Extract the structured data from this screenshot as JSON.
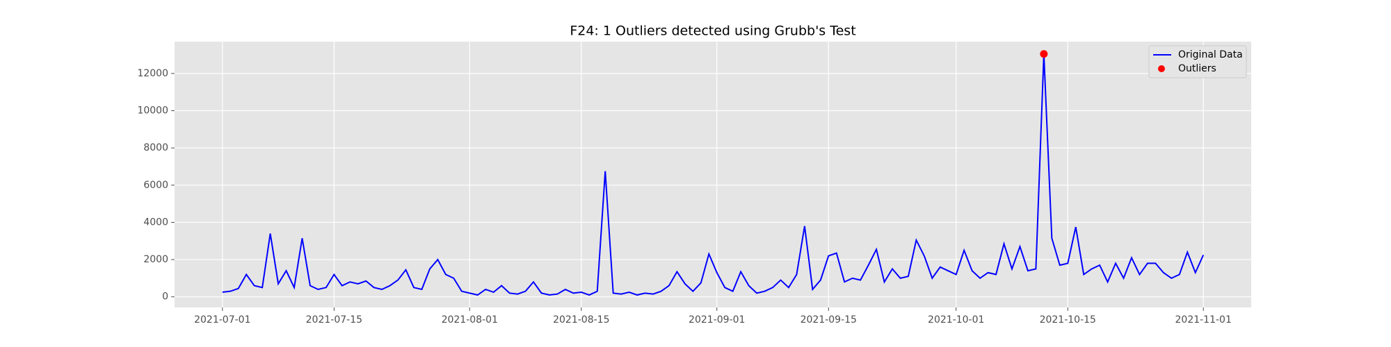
{
  "chart_data": {
    "type": "line",
    "title": "F24: 1 Outliers detected using Grubb's Test",
    "x": [
      "2021-07-01",
      "2021-07-02",
      "2021-07-03",
      "2021-07-04",
      "2021-07-05",
      "2021-07-06",
      "2021-07-07",
      "2021-07-08",
      "2021-07-09",
      "2021-07-10",
      "2021-07-11",
      "2021-07-12",
      "2021-07-13",
      "2021-07-14",
      "2021-07-15",
      "2021-07-16",
      "2021-07-17",
      "2021-07-18",
      "2021-07-19",
      "2021-07-20",
      "2021-07-21",
      "2021-07-22",
      "2021-07-23",
      "2021-07-24",
      "2021-07-25",
      "2021-07-26",
      "2021-07-27",
      "2021-07-28",
      "2021-07-29",
      "2021-07-30",
      "2021-07-31",
      "2021-08-01",
      "2021-08-02",
      "2021-08-03",
      "2021-08-04",
      "2021-08-05",
      "2021-08-06",
      "2021-08-07",
      "2021-08-08",
      "2021-08-09",
      "2021-08-10",
      "2021-08-11",
      "2021-08-12",
      "2021-08-13",
      "2021-08-14",
      "2021-08-15",
      "2021-08-16",
      "2021-08-17",
      "2021-08-18",
      "2021-08-19",
      "2021-08-20",
      "2021-08-21",
      "2021-08-22",
      "2021-08-23",
      "2021-08-24",
      "2021-08-25",
      "2021-08-26",
      "2021-08-27",
      "2021-08-28",
      "2021-08-29",
      "2021-08-30",
      "2021-08-31",
      "2021-09-01",
      "2021-09-02",
      "2021-09-03",
      "2021-09-04",
      "2021-09-05",
      "2021-09-06",
      "2021-09-07",
      "2021-09-08",
      "2021-09-09",
      "2021-09-10",
      "2021-09-11",
      "2021-09-12",
      "2021-09-13",
      "2021-09-14",
      "2021-09-15",
      "2021-09-16",
      "2021-09-17",
      "2021-09-18",
      "2021-09-19",
      "2021-09-20",
      "2021-09-21",
      "2021-09-22",
      "2021-09-23",
      "2021-09-24",
      "2021-09-25",
      "2021-09-26",
      "2021-09-27",
      "2021-09-28",
      "2021-09-29",
      "2021-09-30",
      "2021-10-01",
      "2021-10-02",
      "2021-10-03",
      "2021-10-04",
      "2021-10-05",
      "2021-10-06",
      "2021-10-07",
      "2021-10-08",
      "2021-10-09",
      "2021-10-10",
      "2021-10-11",
      "2021-10-12",
      "2021-10-13",
      "2021-10-14",
      "2021-10-15",
      "2021-10-16",
      "2021-10-17",
      "2021-10-18",
      "2021-10-19",
      "2021-10-20",
      "2021-10-21",
      "2021-10-22",
      "2021-10-23",
      "2021-10-24",
      "2021-10-25",
      "2021-10-26",
      "2021-10-27",
      "2021-10-28",
      "2021-10-29",
      "2021-10-30",
      "2021-10-31",
      "2021-11-01"
    ],
    "series": [
      {
        "name": "Original Data",
        "color": "#0000ff",
        "values": [
          250,
          300,
          450,
          1200,
          600,
          500,
          3400,
          700,
          1400,
          500,
          3150,
          600,
          400,
          500,
          1200,
          600,
          800,
          700,
          850,
          500,
          400,
          600,
          900,
          1450,
          500,
          400,
          1500,
          2000,
          1200,
          1000,
          300,
          200,
          100,
          400,
          250,
          600,
          200,
          150,
          300,
          800,
          200,
          100,
          150,
          400,
          200,
          250,
          100,
          300,
          6750,
          200,
          150,
          250,
          100,
          200,
          150,
          300,
          600,
          1350,
          700,
          300,
          750,
          2300,
          1300,
          500,
          300,
          1350,
          600,
          200,
          300,
          500,
          900,
          500,
          1200,
          3800,
          400,
          900,
          2200,
          2350,
          800,
          1000,
          900,
          1700,
          2550,
          800,
          1500,
          1000,
          1100,
          3050,
          2200,
          1000,
          1600,
          1400,
          1200,
          2500,
          1400,
          1000,
          1300,
          1200,
          2850,
          1500,
          2700,
          1400,
          1500,
          13050,
          3150,
          1700,
          1800,
          3750,
          1200,
          1500,
          1700,
          800,
          1800,
          1000,
          2100,
          1200,
          1800,
          1800,
          1300,
          1000,
          1200,
          2400,
          1300,
          2250
        ]
      },
      {
        "name": "Outliers",
        "color": "#ff0000",
        "style": "markers",
        "x": [
          "2021-10-12"
        ],
        "values": [
          13050
        ]
      }
    ],
    "xlim": [
      "2021-06-25",
      "2021-11-07"
    ],
    "xticks": [
      "2021-07-01",
      "2021-07-15",
      "2021-08-01",
      "2021-08-15",
      "2021-09-01",
      "2021-09-15",
      "2021-10-01",
      "2021-10-15",
      "2021-11-01"
    ],
    "ylim": [
      -570,
      13710
    ],
    "yticks": [
      0,
      2000,
      4000,
      6000,
      8000,
      10000,
      12000
    ],
    "grid": true,
    "legend": "upper right"
  }
}
